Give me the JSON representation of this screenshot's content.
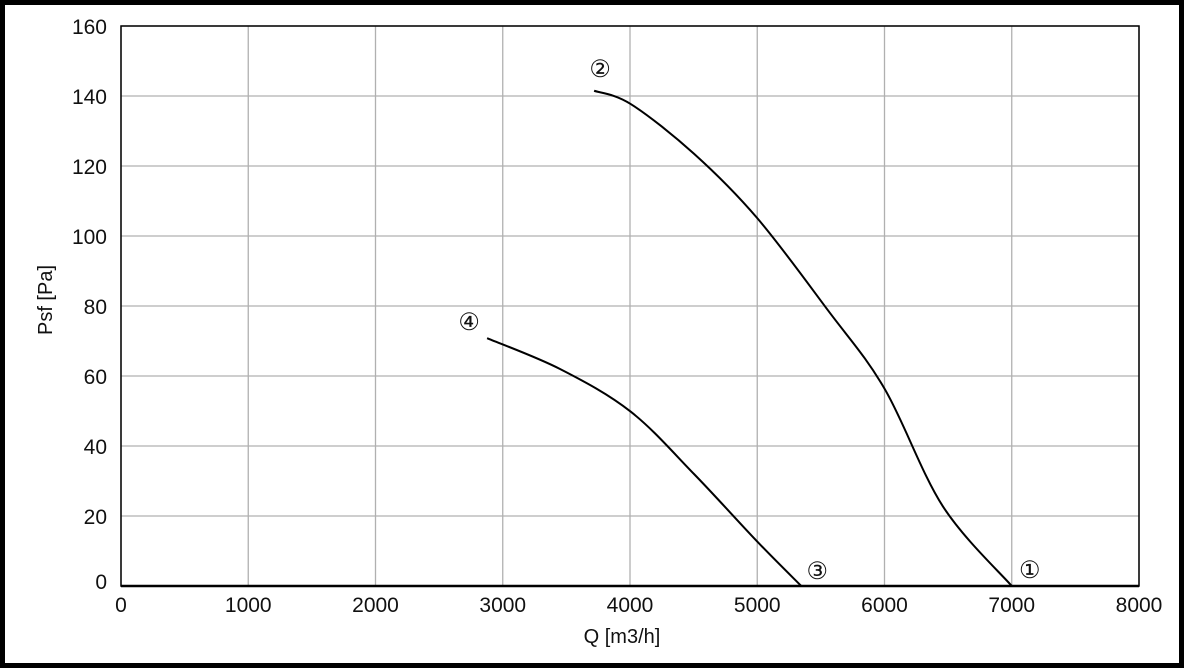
{
  "chart_data": {
    "type": "line",
    "xlabel": "Q [m3/h]",
    "ylabel": "Psf [Pa]",
    "xlim": [
      0,
      8000
    ],
    "ylim": [
      0,
      160
    ],
    "xticks": [
      "0",
      "1000",
      "2000",
      "3000",
      "4000",
      "5000",
      "6000",
      "7000",
      "8000"
    ],
    "yticks": [
      "0",
      "20",
      "40",
      "60",
      "80",
      "100",
      "120",
      "140",
      "160"
    ],
    "grid": true,
    "colors": {
      "line": "#000000",
      "grid": "#b0b0b0"
    },
    "series": [
      {
        "points": [
          [
            3718,
            141.5
          ],
          [
            4006,
            137.7
          ],
          [
            4503,
            123.5
          ],
          [
            5000,
            105.1
          ],
          [
            5555,
            78.8
          ],
          [
            6000,
            56.4
          ],
          [
            6458,
            22.8
          ],
          [
            7000,
            0
          ]
        ]
      },
      {
        "points": [
          [
            2877,
            70.8
          ],
          [
            3450,
            62
          ],
          [
            4006,
            49.8
          ],
          [
            4503,
            32
          ],
          [
            5000,
            12.7
          ],
          [
            5346,
            0
          ]
        ]
      }
    ],
    "annotations": [
      {
        "text": "①",
        "x": 7000,
        "y": 0
      },
      {
        "text": "②",
        "x": 3718,
        "y": 141.5
      },
      {
        "text": "③",
        "x": 5346,
        "y": 0
      },
      {
        "text": "④",
        "x": 2877,
        "y": 70.8
      }
    ]
  }
}
